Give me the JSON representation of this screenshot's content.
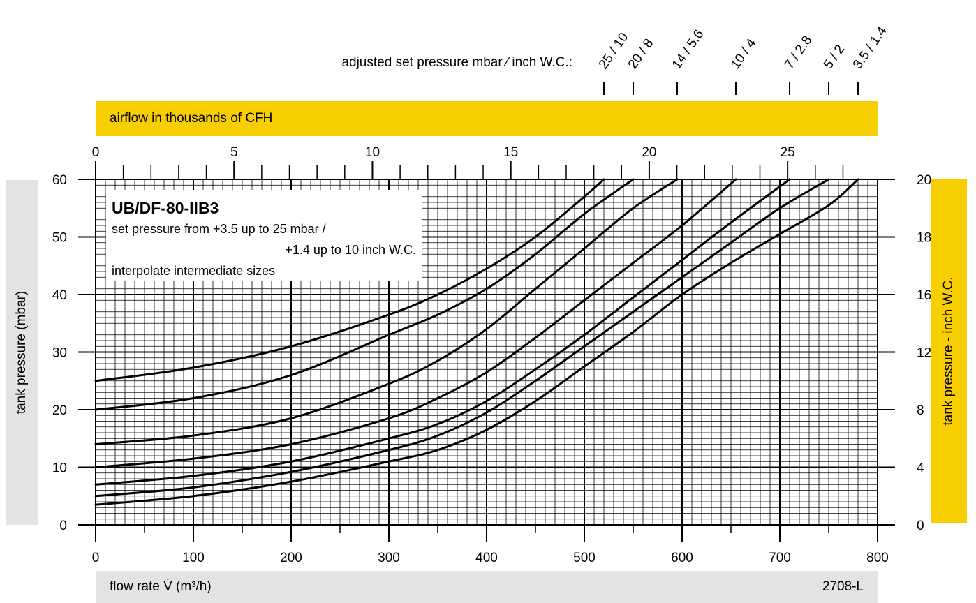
{
  "colors": {
    "accent_yellow": "#F7CE00",
    "panel_gray": "#E3E3E3",
    "grid": "#000000",
    "curve": "#000000"
  },
  "header": {
    "pressure_label": "adjusted set pressure mbar ⁄ inch W.C.:",
    "airflow_band": "airflow in thousands of CFH"
  },
  "footer": {
    "xlabel": "flow rate V̇ (m³/h)",
    "code": "2708-L"
  },
  "axes": {
    "ylabel_left": "tank pressure (mbar)",
    "ylabel_right": "tank pressure  - inch W.C."
  },
  "legend_box": {
    "title": "UB/DF-80-IIB3",
    "line1": "set pressure from  +3.5 up to 25 mbar /",
    "line2": "+1.4 up to 10 inch W.C.",
    "line3": "interpolate intermediate sizes"
  },
  "chart_data": {
    "type": "line",
    "xlabel": "flow rate V̇ (m³/h)",
    "ylabel": "tank pressure (mbar)",
    "xlim": [
      0,
      800
    ],
    "ylim": [
      0,
      60
    ],
    "x_ticks": [
      "0",
      "100",
      "200",
      "300",
      "400",
      "500",
      "600",
      "700",
      "800"
    ],
    "y_ticks": [
      "0",
      "10",
      "20",
      "30",
      "40",
      "50",
      "60"
    ],
    "top_axis": {
      "label": "airflow in thousands of CFH",
      "range": [
        0,
        28.25
      ],
      "ticks": [
        "0",
        "5",
        "10",
        "15",
        "20",
        "25"
      ]
    },
    "right_axis": {
      "label": "tank pressure  - inch W.C.",
      "ticks": [
        "0",
        "4",
        "8",
        "12",
        "16",
        "18",
        "20"
      ]
    },
    "series": [
      {
        "name": "25 / 10",
        "points": [
          [
            0,
            25
          ],
          [
            100,
            27.3
          ],
          [
            200,
            31
          ],
          [
            300,
            36.5
          ],
          [
            350,
            40
          ],
          [
            400,
            44.5
          ],
          [
            450,
            50
          ],
          [
            500,
            57
          ],
          [
            520,
            60
          ]
        ]
      },
      {
        "name": "20 / 8",
        "points": [
          [
            0,
            20
          ],
          [
            100,
            22
          ],
          [
            200,
            26
          ],
          [
            300,
            33
          ],
          [
            350,
            36.5
          ],
          [
            400,
            41
          ],
          [
            450,
            47
          ],
          [
            500,
            54
          ],
          [
            550,
            60
          ]
        ]
      },
      {
        "name": "14 / 5.6",
        "points": [
          [
            0,
            14
          ],
          [
            100,
            15.5
          ],
          [
            200,
            18.5
          ],
          [
            300,
            24.5
          ],
          [
            350,
            28.5
          ],
          [
            400,
            34
          ],
          [
            450,
            41
          ],
          [
            500,
            48
          ],
          [
            550,
            55
          ],
          [
            595,
            60
          ]
        ]
      },
      {
        "name": "10 / 4",
        "points": [
          [
            0,
            10
          ],
          [
            100,
            11.5
          ],
          [
            200,
            14
          ],
          [
            300,
            18.5
          ],
          [
            350,
            22
          ],
          [
            400,
            26.5
          ],
          [
            450,
            32.5
          ],
          [
            500,
            39
          ],
          [
            550,
            45.5
          ],
          [
            600,
            52
          ],
          [
            655,
            60
          ]
        ]
      },
      {
        "name": "7 / 2.8",
        "points": [
          [
            0,
            7
          ],
          [
            100,
            8.5
          ],
          [
            200,
            11
          ],
          [
            300,
            15
          ],
          [
            350,
            17.5
          ],
          [
            400,
            21.5
          ],
          [
            450,
            27
          ],
          [
            500,
            33
          ],
          [
            550,
            39.5
          ],
          [
            600,
            46
          ],
          [
            650,
            52.5
          ],
          [
            710,
            60
          ]
        ]
      },
      {
        "name": "5 / 2",
        "points": [
          [
            0,
            5
          ],
          [
            100,
            6.5
          ],
          [
            200,
            9.2
          ],
          [
            300,
            13
          ],
          [
            350,
            15.5
          ],
          [
            400,
            19.5
          ],
          [
            450,
            25
          ],
          [
            500,
            31
          ],
          [
            550,
            37
          ],
          [
            600,
            43
          ],
          [
            650,
            49
          ],
          [
            700,
            55
          ],
          [
            750,
            60
          ]
        ]
      },
      {
        "name": "3.5 / 1.4",
        "points": [
          [
            0,
            3.5
          ],
          [
            100,
            5
          ],
          [
            200,
            7.5
          ],
          [
            300,
            11
          ],
          [
            350,
            13
          ],
          [
            400,
            16.5
          ],
          [
            450,
            21.5
          ],
          [
            500,
            27.5
          ],
          [
            550,
            33.5
          ],
          [
            600,
            40
          ],
          [
            650,
            45.5
          ],
          [
            700,
            50.5
          ],
          [
            750,
            55.5
          ],
          [
            780,
            60
          ]
        ]
      }
    ]
  }
}
